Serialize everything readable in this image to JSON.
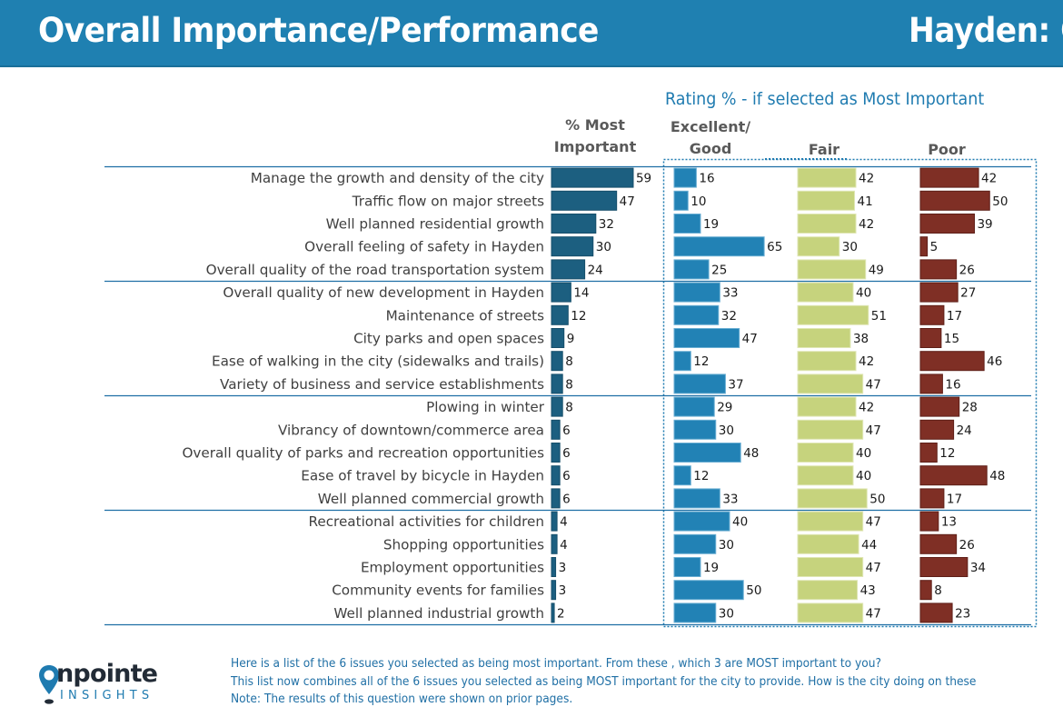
{
  "header": {
    "title": "Overall Importance/Performance",
    "city_label": "Hayden: C"
  },
  "colors": {
    "header_bg": "#1f80b1",
    "most_important_bar": "#1c5f80",
    "excellent_good_bar": "#2282b5",
    "fair_bar": "#c6d37d",
    "poor_bar": "#7f2f25",
    "divider": "#1f6fa5",
    "accent_text": "#1f7bb0"
  },
  "column_headers": {
    "rating_title": "Rating % - if selected as Most Important",
    "most_important_line1": "% Most",
    "most_important_line2": "Important",
    "excellent_line1": "Excellent/",
    "excellent_line2": "Good",
    "fair": "Fair",
    "poor": "Poor"
  },
  "chart_data": {
    "type": "bar",
    "orientation": "horizontal",
    "title": "Overall Importance/Performance",
    "subtitle": "Rating % - if selected as Most Important",
    "unit": "%",
    "categories": [
      "Manage the growth and density of the city",
      "Traffic flow on major streets",
      "Well planned residential growth",
      "Overall feeling of safety in Hayden",
      "Overall quality of the road transportation system",
      "Overall quality of new development in Hayden",
      "Maintenance of streets",
      "City parks and open spaces",
      "Ease of walking in the city (sidewalks and trails)",
      "Variety of business and service establishments",
      "Plowing in winter",
      "Vibrancy of downtown/commerce area",
      "Overall quality of parks and recreation opportunities",
      "Ease of travel by bicycle in Hayden",
      "Well planned commercial growth",
      "Recreational activities for children",
      "Shopping opportunities",
      "Employment opportunities",
      "Community events for families",
      "Well planned industrial growth"
    ],
    "groups_of": 5,
    "series": [
      {
        "name": "% Most Important",
        "values": [
          59,
          47,
          32,
          30,
          24,
          14,
          12,
          9,
          8,
          8,
          8,
          6,
          6,
          6,
          6,
          4,
          4,
          3,
          3,
          2
        ]
      },
      {
        "name": "Excellent/Good",
        "values": [
          16,
          10,
          19,
          65,
          25,
          33,
          32,
          47,
          12,
          37,
          29,
          30,
          48,
          12,
          33,
          40,
          30,
          19,
          50,
          30
        ]
      },
      {
        "name": "Fair",
        "values": [
          42,
          41,
          42,
          30,
          49,
          40,
          51,
          38,
          42,
          47,
          42,
          47,
          40,
          40,
          50,
          47,
          44,
          47,
          43,
          47
        ]
      },
      {
        "name": "Poor",
        "values": [
          42,
          50,
          39,
          5,
          26,
          27,
          17,
          15,
          46,
          16,
          28,
          24,
          12,
          48,
          17,
          13,
          26,
          34,
          8,
          23
        ]
      }
    ],
    "xlim": [
      0,
      100
    ],
    "grid": false,
    "legend": "column headers at top"
  },
  "logo": {
    "word": "npointe",
    "sub": "INSIGHTS"
  },
  "footer": {
    "lines": [
      "Here is a list of the 6 issues you selected as being most important.  From these , which 3 are MOST important to you?",
      "This list now combines all of the 6 issues you selected as being MOST important for the city to provide.  How is the city doing on these",
      "Note: The results of this question were shown on prior pages."
    ]
  }
}
